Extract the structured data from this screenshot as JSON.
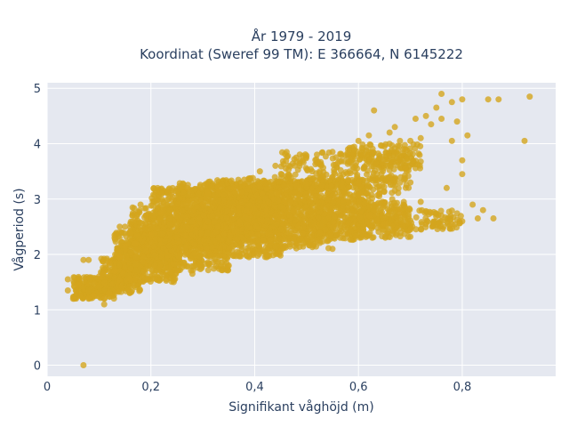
{
  "chart_data": {
    "type": "scatter",
    "title": [
      "År 1979 - 2019",
      "Koordinat (Sweref 99 TM): E 366664, N 6145222"
    ],
    "xlabel": "Signifikant våghöjd (m)",
    "ylabel": "Vågperiod (s)",
    "xlim": [
      0,
      0.98
    ],
    "ylim": [
      -0.2,
      5.1
    ],
    "x_ticks": [
      0,
      0.2,
      0.4,
      0.6,
      0.8
    ],
    "x_tick_labels": [
      "0",
      "0,2",
      "0,4",
      "0,6",
      "0,8"
    ],
    "y_ticks": [
      0,
      1,
      2,
      3,
      4,
      5
    ],
    "y_tick_labels": [
      "0",
      "1",
      "2",
      "3",
      "4",
      "5"
    ],
    "grid": true,
    "colors": {
      "marker": "#D4A51E",
      "plot_bg": "#E5E8F0",
      "grid": "#FFFFFF",
      "text": "#2A3F5F"
    },
    "series": [
      {
        "points": [
          [
            0.07,
            0.0
          ],
          [
            0.04,
            1.55
          ],
          [
            0.04,
            1.35
          ],
          [
            0.05,
            1.2
          ],
          [
            0.06,
            1.45
          ],
          [
            0.07,
            1.9
          ],
          [
            0.08,
            1.9
          ],
          [
            0.09,
            1.25
          ],
          [
            0.1,
            1.6
          ],
          [
            0.11,
            1.1
          ],
          [
            0.12,
            1.3
          ],
          [
            0.13,
            1.7
          ],
          [
            0.14,
            1.95
          ],
          [
            0.15,
            2.15
          ],
          [
            0.13,
            2.3
          ],
          [
            0.15,
            2.5
          ],
          [
            0.17,
            2.65
          ],
          [
            0.18,
            2.9
          ],
          [
            0.2,
            2.35
          ],
          [
            0.22,
            2.75
          ],
          [
            0.24,
            3.1
          ],
          [
            0.27,
            3.2
          ],
          [
            0.3,
            2.9
          ],
          [
            0.33,
            3.2
          ],
          [
            0.38,
            3.35
          ],
          [
            0.41,
            3.5
          ],
          [
            0.44,
            3.6
          ],
          [
            0.48,
            3.75
          ],
          [
            0.52,
            3.8
          ],
          [
            0.55,
            3.85
          ],
          [
            0.58,
            3.9
          ],
          [
            0.6,
            4.05
          ],
          [
            0.62,
            4.15
          ],
          [
            0.63,
            4.6
          ],
          [
            0.65,
            3.95
          ],
          [
            0.66,
            4.2
          ],
          [
            0.67,
            4.3
          ],
          [
            0.68,
            4.05
          ],
          [
            0.69,
            3.9
          ],
          [
            0.7,
            4.05
          ],
          [
            0.71,
            4.45
          ],
          [
            0.72,
            4.1
          ],
          [
            0.73,
            4.5
          ],
          [
            0.74,
            4.35
          ],
          [
            0.75,
            4.65
          ],
          [
            0.76,
            4.9
          ],
          [
            0.76,
            4.45
          ],
          [
            0.78,
            4.75
          ],
          [
            0.79,
            4.4
          ],
          [
            0.8,
            4.8
          ],
          [
            0.78,
            4.05
          ],
          [
            0.8,
            3.7
          ],
          [
            0.8,
            3.45
          ],
          [
            0.77,
            3.2
          ],
          [
            0.81,
            4.15
          ],
          [
            0.85,
            4.8
          ],
          [
            0.87,
            4.8
          ],
          [
            0.92,
            4.05
          ],
          [
            0.93,
            4.85
          ],
          [
            0.7,
            3.3
          ],
          [
            0.69,
            3.55
          ],
          [
            0.72,
            2.95
          ],
          [
            0.74,
            2.75
          ],
          [
            0.76,
            2.7
          ],
          [
            0.78,
            2.55
          ],
          [
            0.8,
            2.6
          ],
          [
            0.83,
            2.65
          ],
          [
            0.84,
            2.8
          ],
          [
            0.86,
            2.65
          ],
          [
            0.82,
            2.9
          ],
          [
            0.66,
            3.4
          ],
          [
            0.64,
            3.1
          ],
          [
            0.67,
            3.15
          ],
          [
            0.7,
            2.45
          ],
          [
            0.73,
            2.55
          ],
          [
            0.6,
            3.3
          ],
          [
            0.55,
            2.1
          ],
          [
            0.45,
            2.05
          ],
          [
            0.35,
            1.8
          ],
          [
            0.28,
            1.65
          ],
          [
            0.23,
            1.55
          ],
          [
            0.16,
            1.55
          ],
          [
            0.11,
            1.2
          ],
          [
            0.08,
            1.2
          ],
          [
            0.12,
            1.85
          ],
          [
            0.14,
            2.5
          ],
          [
            0.17,
            2.2
          ],
          [
            0.19,
            2.7
          ],
          [
            0.24,
            3.0
          ],
          [
            0.31,
            3.1
          ],
          [
            0.36,
            3.2
          ],
          [
            0.46,
            3.55
          ],
          [
            0.52,
            3.65
          ],
          [
            0.56,
            3.65
          ],
          [
            0.58,
            3.35
          ],
          [
            0.62,
            2.7
          ],
          [
            0.65,
            2.55
          ],
          [
            0.68,
            2.75
          ]
        ],
        "point_clouds": [
          {
            "x": [
              0.05,
              0.13
            ],
            "y": [
              1.2,
              1.6
            ],
            "n": 220
          },
          {
            "x": [
              0.1,
              0.18
            ],
            "y": [
              1.3,
              1.95
            ],
            "n": 220
          },
          {
            "x": [
              0.13,
              0.25
            ],
            "y": [
              1.5,
              2.4
            ],
            "n": 420
          },
          {
            "x": [
              0.16,
              0.35
            ],
            "y": [
              1.7,
              2.85
            ],
            "n": 650
          },
          {
            "x": [
              0.2,
              0.45
            ],
            "y": [
              1.95,
              3.2
            ],
            "n": 850
          },
          {
            "x": [
              0.25,
              0.55
            ],
            "y": [
              2.1,
              3.3
            ],
            "n": 850
          },
          {
            "x": [
              0.3,
              0.62
            ],
            "y": [
              2.25,
              3.35
            ],
            "n": 650
          },
          {
            "x": [
              0.38,
              0.68
            ],
            "y": [
              2.45,
              3.4
            ],
            "n": 380
          },
          {
            "x": [
              0.45,
              0.7
            ],
            "y": [
              3.2,
              3.85
            ],
            "n": 260
          },
          {
            "x": [
              0.52,
              0.7
            ],
            "y": [
              2.3,
              2.95
            ],
            "n": 260
          },
          {
            "x": [
              0.6,
              0.8
            ],
            "y": [
              2.45,
              2.8
            ],
            "n": 130
          },
          {
            "x": [
              0.58,
              0.72
            ],
            "y": [
              3.55,
              4.0
            ],
            "n": 110
          }
        ]
      }
    ]
  }
}
